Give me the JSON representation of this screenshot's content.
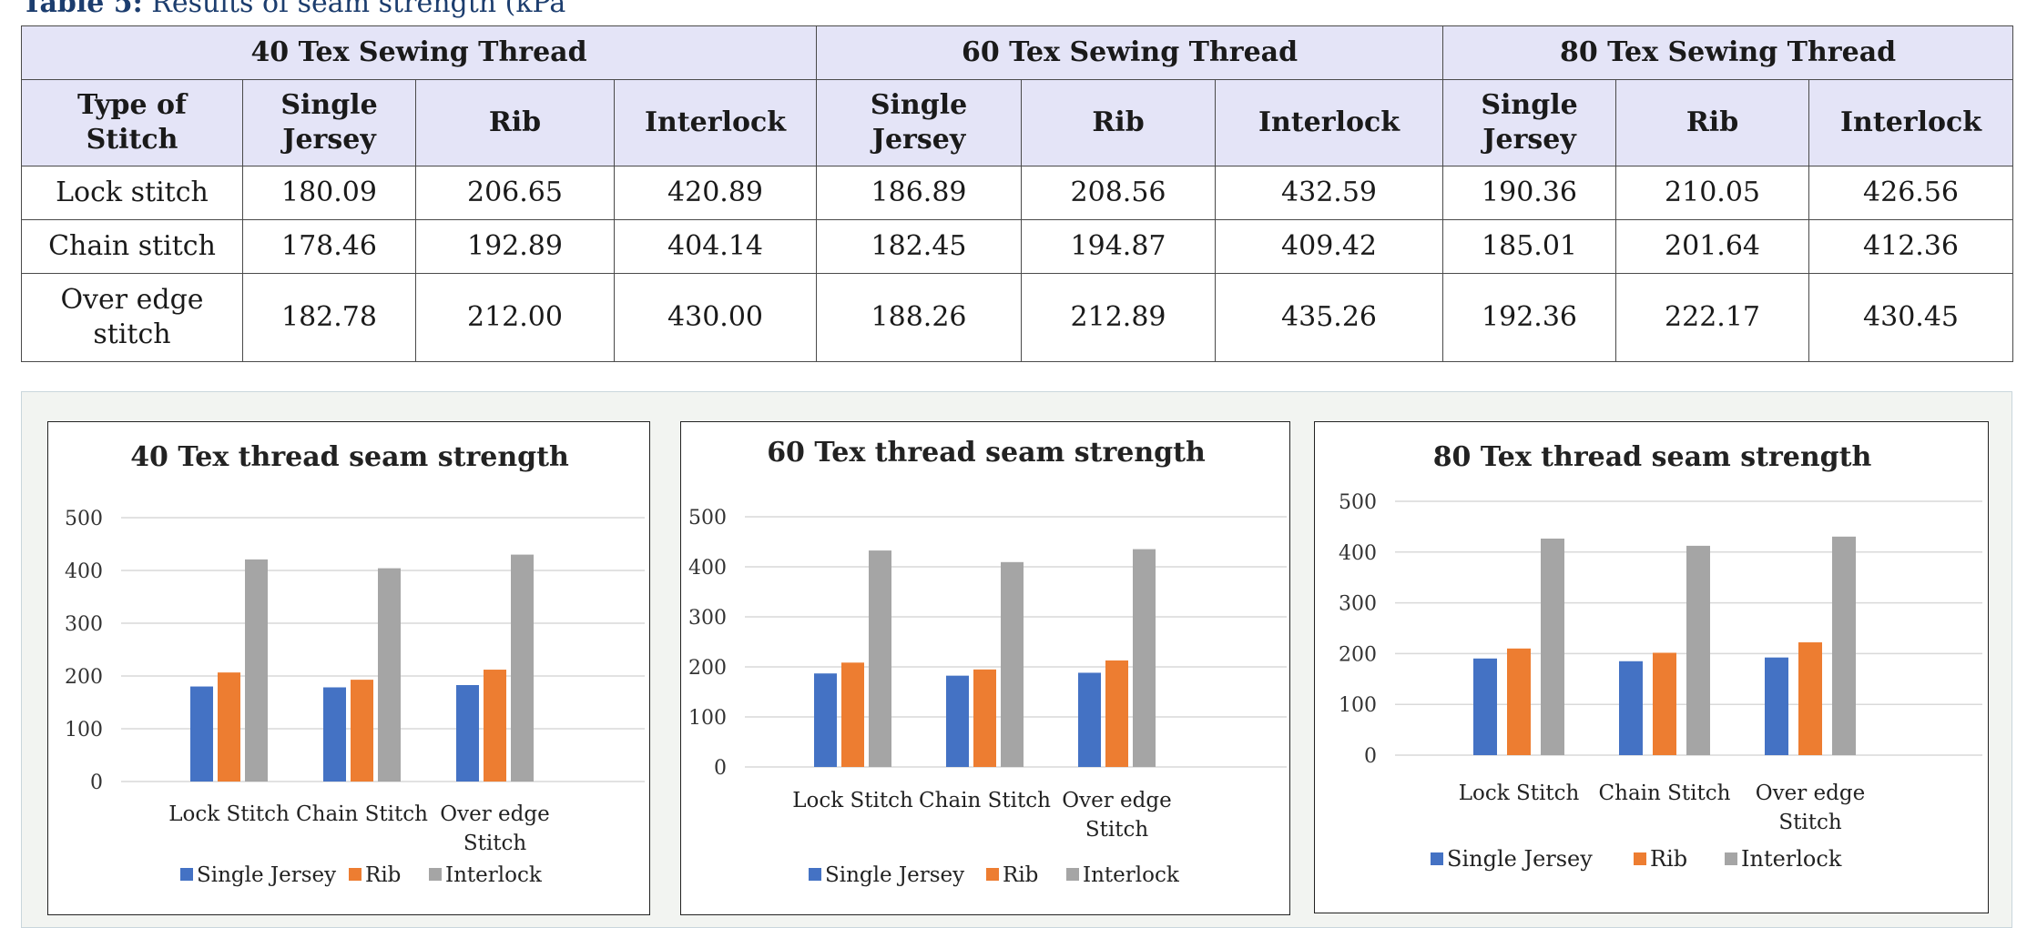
{
  "caption": {
    "label": "Table 5:",
    "text": "Results of seam strength (kPa"
  },
  "table": {
    "group_headers": [
      "40 Tex Sewing Thread",
      "60 Tex Sewing Thread",
      "80 Tex Sewing Thread"
    ],
    "first_col_header": "Type of Stitch",
    "sub_headers": [
      "Single Jersey",
      "Rib",
      "Interlock",
      "Single Jersey",
      "Rib",
      "Interlock",
      "Single Jersey",
      "Rib",
      "Interlock"
    ],
    "rows": [
      {
        "label": "Lock stitch",
        "cells": [
          "180.09",
          "206.65",
          "420.89",
          "186.89",
          "208.56",
          "432.59",
          "190.36",
          "210.05",
          "426.56"
        ]
      },
      {
        "label": "Chain stitch",
        "cells": [
          "178.46",
          "192.89",
          "404.14",
          "182.45",
          "194.87",
          "409.42",
          "185.01",
          "201.64",
          "412.36"
        ]
      },
      {
        "label": "Over edge stitch",
        "cells": [
          "182.78",
          "212.00",
          "430.00",
          "188.26",
          "212.89",
          "435.26",
          "192.36",
          "222.17",
          "430.45"
        ]
      }
    ]
  },
  "colors": {
    "single_jersey": "#4472c4",
    "rib": "#ed7d31",
    "interlock": "#a5a5a5",
    "header_bg": "#e4e4f7",
    "caption": "#1c3d6e"
  },
  "chart_data": [
    {
      "type": "bar",
      "title": "40 Tex thread  seam strength",
      "categories": [
        "Lock Stitch",
        "Chain Stitch",
        "Over edge Stitch"
      ],
      "series": [
        {
          "name": "Single Jersey",
          "values": [
            180.09,
            178.46,
            182.78
          ]
        },
        {
          "name": "Rib",
          "values": [
            206.65,
            192.89,
            212.0
          ]
        },
        {
          "name": "Interlock",
          "values": [
            420.89,
            404.14,
            430.0
          ]
        }
      ],
      "yticks": [
        "0",
        "100",
        "200",
        "300",
        "400",
        "500"
      ],
      "ylim": [
        0,
        500
      ],
      "legend": "bottom",
      "grid": true
    },
    {
      "type": "bar",
      "title": "60 Tex thread  seam strength",
      "categories": [
        "Lock Stitch",
        "Chain Stitch",
        "Over edge Stitch"
      ],
      "series": [
        {
          "name": "Single Jersey",
          "values": [
            186.89,
            182.45,
            188.26
          ]
        },
        {
          "name": "Rib",
          "values": [
            208.56,
            194.87,
            212.89
          ]
        },
        {
          "name": "Interlock",
          "values": [
            432.59,
            409.42,
            435.26
          ]
        }
      ],
      "yticks": [
        "0",
        "100",
        "200",
        "300",
        "400",
        "500"
      ],
      "ylim": [
        0,
        500
      ],
      "legend": "bottom",
      "grid": true
    },
    {
      "type": "bar",
      "title": "80 Tex thread  seam strength",
      "categories": [
        "Lock Stitch",
        "Chain Stitch",
        "Over edge Stitch"
      ],
      "series": [
        {
          "name": "Single Jersey",
          "values": [
            190.36,
            185.01,
            192.36
          ]
        },
        {
          "name": "Rib",
          "values": [
            210.05,
            201.64,
            222.17
          ]
        },
        {
          "name": "Interlock",
          "values": [
            426.56,
            412.36,
            430.45
          ]
        }
      ],
      "yticks": [
        "0",
        "100",
        "200",
        "300",
        "400",
        "500"
      ],
      "ylim": [
        0,
        500
      ],
      "legend": "bottom",
      "grid": true
    }
  ]
}
